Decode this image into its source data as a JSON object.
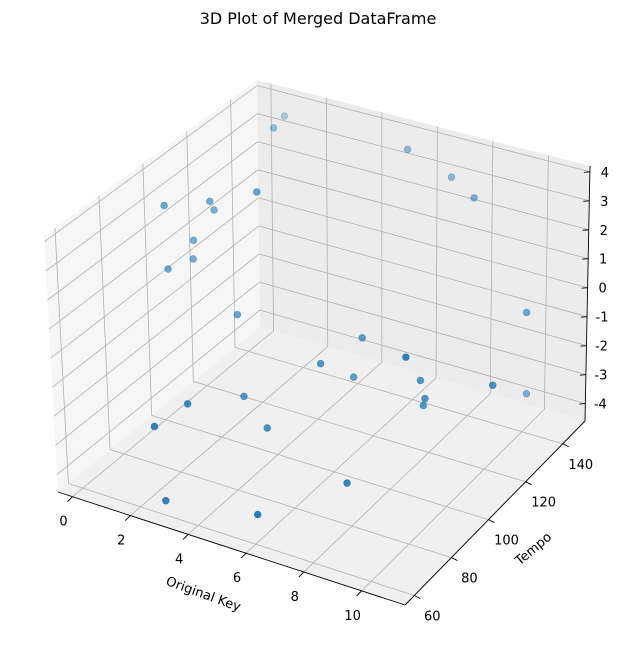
{
  "chart_data": {
    "type": "scatter3d",
    "title": "3D Plot of Merged DataFrame",
    "xlabel": "Original Key",
    "ylabel": "Tempo",
    "zlabel": "",
    "xlim": [
      -0.5,
      11.5
    ],
    "ylim": [
      55,
      152
    ],
    "zlim": [
      -4.6,
      4.2
    ],
    "xticks": [
      0,
      2,
      4,
      6,
      8,
      10
    ],
    "yticks": [
      60,
      80,
      100,
      120,
      140
    ],
    "zticks": [
      -4,
      -3,
      -2,
      -1,
      0,
      1,
      2,
      3,
      4
    ],
    "grid": true,
    "color": "#1f77b4",
    "points": [
      {
        "x": 3.2,
        "y": 100.0,
        "z": 4.0
      },
      {
        "x": 1.5,
        "y": 132.0,
        "z": 3.9
      },
      {
        "x": 6.5,
        "y": 147.0,
        "z": 3.0
      },
      {
        "x": 7.7,
        "y": 141.0,
        "z": 3.0
      },
      {
        "x": 9.5,
        "y": 141.0,
        "z": -0.3
      },
      {
        "x": 9.0,
        "y": 148.0,
        "z": -3.6
      },
      {
        "x": 0.6,
        "y": 92.0,
        "z": 3.2
      },
      {
        "x": 1.3,
        "y": 104.0,
        "z": 2.9
      },
      {
        "x": 1.3,
        "y": 106.0,
        "z": 2.5
      },
      {
        "x": 0.8,
        "y": 103.0,
        "z": 1.5
      },
      {
        "x": 1.0,
        "y": 100.0,
        "z": 1.1
      },
      {
        "x": 0.6,
        "y": 93.5,
        "z": 1.0
      },
      {
        "x": 2.5,
        "y": 100.0,
        "z": -0.3
      },
      {
        "x": 3.5,
        "y": 89.0,
        "z": -2.1
      },
      {
        "x": 4.3,
        "y": 89.0,
        "z": -2.9
      },
      {
        "x": 10.2,
        "y": 115.0,
        "z": -1.1
      },
      {
        "x": 9.0,
        "y": 90.0,
        "z": 0.8
      },
      {
        "x": 6.0,
        "y": 111.0,
        "z": -0.6
      },
      {
        "x": 8.3,
        "y": 109.0,
        "z": -1.8
      },
      {
        "x": 8.0,
        "y": 111.0,
        "z": -1.4
      },
      {
        "x": 8.1,
        "y": 111.0,
        "z": -2.2
      },
      {
        "x": 5.7,
        "y": 111.0,
        "z": -2.0
      },
      {
        "x": 5.5,
        "y": 98.0,
        "z": -0.9
      },
      {
        "x": 2.8,
        "y": 61.0,
        "z": -4.2
      },
      {
        "x": 7.3,
        "y": 85.5,
        "z": -3.6
      },
      {
        "x": 3.0,
        "y": 69.0,
        "z": -1.4
      },
      {
        "x": 5.4,
        "y": 69.0,
        "z": -4.3
      },
      {
        "x": 2.5,
        "y": 60.0,
        "z": -1.8
      },
      {
        "x": 5.5,
        "y": 140.0,
        "z": 4.0
      },
      {
        "x": 1.3,
        "y": 140.0,
        "z": 3.8
      }
    ]
  }
}
